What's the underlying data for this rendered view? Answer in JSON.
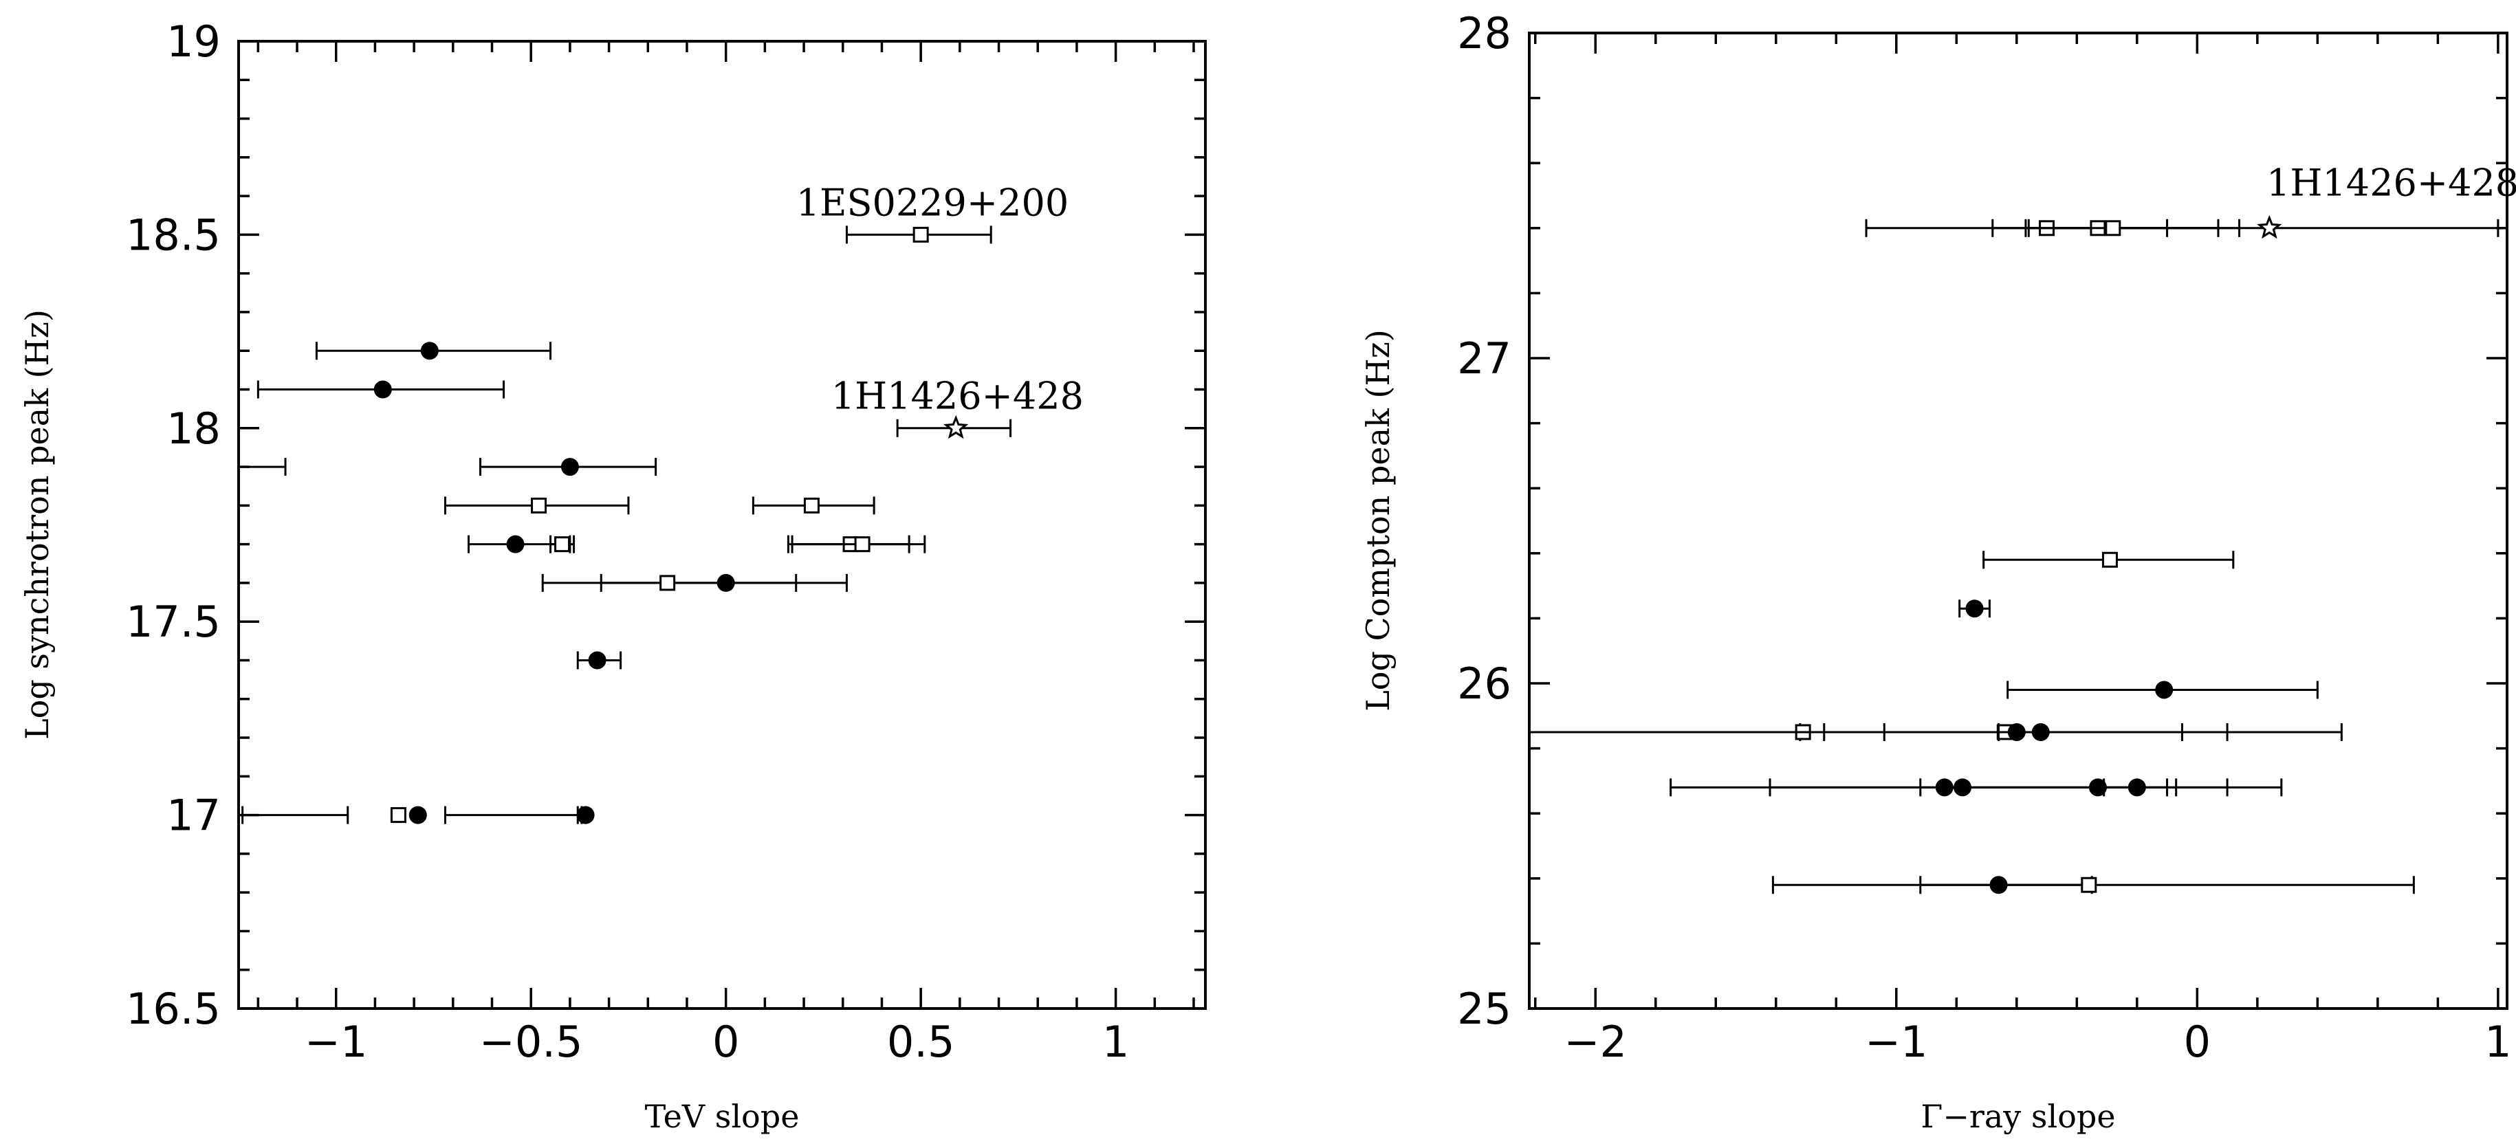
{
  "chart_data": [
    {
      "type": "scatter",
      "xlabel": "TeV slope",
      "ylabel": "Log synchrotron peak (Hz)",
      "xlim": [
        -1.25,
        1.23
      ],
      "ylim": [
        16.5,
        19
      ],
      "xticks": [
        -1,
        -0.5,
        0,
        0.5,
        1
      ],
      "xtick_labels": [
        "−1",
        "−0.5",
        "0",
        "0.5",
        "1"
      ],
      "yticks": [
        16.5,
        17,
        17.5,
        18,
        18.5,
        19
      ],
      "ytick_labels": [
        "16.5",
        "17",
        "17.5",
        "18",
        "18.5",
        "19"
      ],
      "annotations": [
        {
          "text": "1ES0229+200",
          "x": 0.18,
          "y": 18.55
        },
        {
          "text": "1H1426+428",
          "x": 0.27,
          "y": 18.05
        }
      ],
      "points": [
        {
          "marker": "circle",
          "x": -0.76,
          "y": 18.2,
          "xerr_low": -1.05,
          "xerr_high": -0.45
        },
        {
          "marker": "circle",
          "x": -0.88,
          "y": 18.1,
          "xerr_low": -1.2,
          "xerr_high": -0.57
        },
        {
          "marker": "circle",
          "x": -0.4,
          "y": 17.9,
          "xerr_low": -0.63,
          "xerr_high": -0.18
        },
        {
          "marker": "circle",
          "x": -0.54,
          "y": 17.7,
          "xerr_low": -0.66,
          "xerr_high": -0.4
        },
        {
          "marker": "circle",
          "x": 0.0,
          "y": 17.6,
          "xerr_low": -0.32,
          "xerr_high": 0.18
        },
        {
          "marker": "circle",
          "x": -0.33,
          "y": 17.4,
          "xerr_low": -0.38,
          "xerr_high": -0.27
        },
        {
          "marker": "circle",
          "x": -0.79,
          "y": 17.0,
          "xerr_low": -0.72,
          "xerr_high": -0.37
        },
        {
          "marker": "circle",
          "x": -0.36,
          "y": 17.0,
          "xerr_low": -0.38,
          "xerr_high": -0.36
        },
        {
          "marker": "square",
          "x": 0.5,
          "y": 18.5,
          "xerr_low": 0.31,
          "xerr_high": 0.68
        },
        {
          "marker": "square",
          "x": -0.48,
          "y": 17.8,
          "xerr_low": -0.72,
          "xerr_high": -0.25
        },
        {
          "marker": "square",
          "x": 0.22,
          "y": 17.8,
          "xerr_low": 0.07,
          "xerr_high": 0.38
        },
        {
          "marker": "square",
          "x": -0.42,
          "y": 17.7,
          "xerr_low": -0.45,
          "xerr_high": -0.39
        },
        {
          "marker": "square",
          "x": 0.32,
          "y": 17.7,
          "xerr_low": 0.17,
          "xerr_high": 0.47
        },
        {
          "marker": "square",
          "x": 0.35,
          "y": 17.7,
          "xerr_low": 0.16,
          "xerr_high": 0.51
        },
        {
          "marker": "square",
          "x": -0.15,
          "y": 17.6,
          "xerr_low": -0.47,
          "xerr_high": 0.31
        },
        {
          "marker": "square",
          "x": -0.84,
          "y": 17.0,
          "xerr_low": -1.24,
          "xerr_high": -0.97
        },
        {
          "marker": "star",
          "x": 0.59,
          "y": 18.0,
          "xerr_low": 0.44,
          "xerr_high": 0.73
        }
      ],
      "offscale_points": [
        {
          "marker": "none",
          "y": 17.9,
          "xerr_high": -1.13
        }
      ]
    },
    {
      "type": "scatter",
      "xlabel": "Γ−ray slope",
      "ylabel": "Log Compton peak (Hz)",
      "xlim": [
        -2.22,
        1.03
      ],
      "ylim": [
        25,
        28
      ],
      "xticks": [
        -2,
        -1,
        0,
        1
      ],
      "xtick_labels": [
        "−2",
        "−1",
        "0",
        "1"
      ],
      "yticks": [
        25,
        26,
        27,
        28
      ],
      "ytick_labels": [
        "25",
        "26",
        "27",
        "28"
      ],
      "annotations": [
        {
          "text": "1H1426+428",
          "x": 0.23,
          "y": 27.5
        }
      ],
      "points": [
        {
          "marker": "star",
          "x": 0.24,
          "y": 27.4,
          "xerr_low": -1.1,
          "xerr_high": 1.0
        },
        {
          "marker": "square",
          "x": -0.5,
          "y": 27.4,
          "xerr_low": -0.68,
          "xerr_high": -0.1
        },
        {
          "marker": "square",
          "x": -0.33,
          "y": 27.4,
          "xerr_low": -0.57,
          "xerr_high": 0.07
        },
        {
          "marker": "square",
          "x": -0.28,
          "y": 27.4,
          "xerr_low": -0.56,
          "xerr_high": 0.14
        },
        {
          "marker": "square",
          "x": -0.29,
          "y": 26.38,
          "xerr_low": -0.71,
          "xerr_high": 0.12
        },
        {
          "marker": "circle",
          "x": -0.74,
          "y": 26.23,
          "xerr_low": -0.79,
          "xerr_high": -0.69
        },
        {
          "marker": "circle",
          "x": -0.11,
          "y": 25.98,
          "xerr_low": -0.63,
          "xerr_high": 0.4
        },
        {
          "marker": "square",
          "x": -1.31,
          "y": 25.85,
          "xerr_low": -1.32,
          "xerr_high": -1.24
        },
        {
          "marker": "square",
          "x": -0.64,
          "y": 25.85,
          "xerr_low": -2.22,
          "xerr_high": -0.05
        },
        {
          "marker": "circle",
          "x": -0.6,
          "y": 25.85,
          "xerr_low": -1.04,
          "xerr_high": 0.1
        },
        {
          "marker": "circle",
          "x": -0.52,
          "y": 25.85,
          "xerr_low": -0.66,
          "xerr_high": 0.48
        },
        {
          "marker": "circle",
          "x": -0.84,
          "y": 25.68,
          "xerr_low": -1.75,
          "xerr_high": -0.1
        },
        {
          "marker": "circle",
          "x": -0.78,
          "y": 25.68,
          "xerr_low": -1.42,
          "xerr_high": 0.1
        },
        {
          "marker": "circle",
          "x": -0.33,
          "y": 25.68,
          "xerr_low": -0.92,
          "xerr_high": -0.07
        },
        {
          "marker": "circle",
          "x": -0.2,
          "y": 25.68,
          "xerr_low": -0.31,
          "xerr_high": 0.28
        },
        {
          "marker": "circle",
          "x": -0.66,
          "y": 25.38,
          "xerr_low": -1.41,
          "xerr_high": 0.72
        },
        {
          "marker": "square",
          "x": -0.36,
          "y": 25.38,
          "xerr_low": -0.92,
          "xerr_high": -0.35
        }
      ]
    }
  ]
}
